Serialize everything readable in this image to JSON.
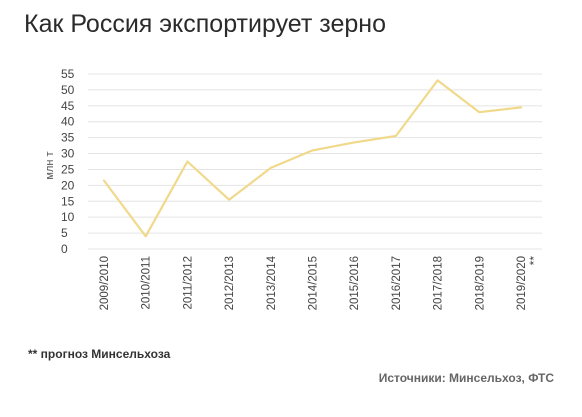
{
  "title": "Как Россия экспортирует зерно",
  "footnote": "** прогноз Минсельхоза",
  "sources": "Источники: Минсельхоз, ФТС",
  "chart_data": {
    "type": "line",
    "title": "Как Россия экспортирует зерно",
    "ylabel": "млн т",
    "xlabel": "",
    "ylim": [
      0,
      55
    ],
    "yticks": [
      0,
      5,
      10,
      15,
      20,
      25,
      30,
      35,
      40,
      45,
      50,
      55
    ],
    "grid": true,
    "categories": [
      "2009/2010",
      "2010/2011",
      "2011/2012",
      "2012/2013",
      "2013/2014",
      "2014/2015",
      "2015/2016",
      "2016/2017",
      "2017/2018",
      "2018/2019",
      "2019/2020"
    ],
    "series": [
      {
        "values": [
          21.5,
          4,
          27.5,
          15.5,
          25.5,
          31,
          33.5,
          35.5,
          53,
          43,
          44.5
        ]
      }
    ],
    "annotations": [
      {
        "category": "2019/2020",
        "text": "**"
      }
    ],
    "line_color": "#f0d98a"
  }
}
